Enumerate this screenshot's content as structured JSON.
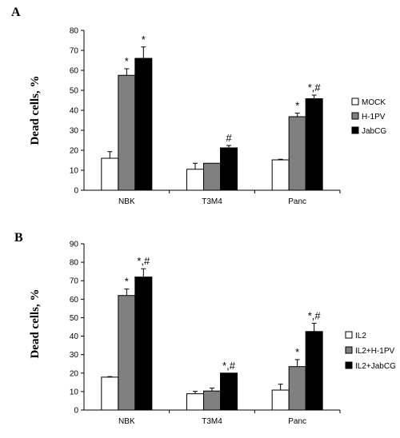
{
  "chart_data": [
    {
      "type": "bar",
      "panel": "A",
      "categories": [
        "NBK",
        "T3M4",
        "Panc"
      ],
      "ylabel": "Dead cells, %",
      "ylim": [
        0,
        80
      ],
      "yticks": [
        0,
        10,
        20,
        30,
        40,
        50,
        60,
        70,
        80
      ],
      "legend_position": "right",
      "series": [
        {
          "name": "MOCK",
          "color": "#ffffff",
          "values": [
            16,
            10.5,
            15.2
          ],
          "errors": [
            3.3,
            3,
            0.3
          ],
          "labels": [
            "",
            "",
            ""
          ]
        },
        {
          "name": "H-1PV",
          "color": "#808080",
          "values": [
            57.5,
            13.5,
            36.8
          ],
          "errors": [
            3.3,
            0,
            1.8
          ],
          "labels": [
            "*",
            "",
            "*"
          ]
        },
        {
          "name": "JabCG",
          "color": "#000000",
          "values": [
            66,
            21.2,
            45.8
          ],
          "errors": [
            5.7,
            1.2,
            1.8
          ],
          "labels": [
            "*",
            "#",
            "*,#"
          ]
        }
      ]
    },
    {
      "type": "bar",
      "panel": "B",
      "categories": [
        "NBK",
        "T3M4",
        "Panc"
      ],
      "ylabel": "Dead cells, %",
      "ylim": [
        0,
        90
      ],
      "yticks": [
        0,
        10,
        20,
        30,
        40,
        50,
        60,
        70,
        80,
        90
      ],
      "legend_position": "right",
      "series": [
        {
          "name": "IL2",
          "color": "#ffffff",
          "values": [
            17.8,
            8.8,
            10.8
          ],
          "errors": [
            0.3,
            1.3,
            3.2
          ],
          "labels": [
            "",
            "",
            ""
          ]
        },
        {
          "name": "IL2+H-1PV",
          "color": "#808080",
          "values": [
            62,
            10.3,
            23.5
          ],
          "errors": [
            3.5,
            1.6,
            3.8
          ],
          "labels": [
            "*",
            "",
            "*"
          ]
        },
        {
          "name": "IL2+JabCG",
          "color": "#000000",
          "values": [
            72,
            20,
            42.5
          ],
          "errors": [
            4.5,
            0,
            4.5
          ],
          "labels": [
            "*,#",
            "*,#",
            "*,#"
          ]
        }
      ]
    }
  ]
}
